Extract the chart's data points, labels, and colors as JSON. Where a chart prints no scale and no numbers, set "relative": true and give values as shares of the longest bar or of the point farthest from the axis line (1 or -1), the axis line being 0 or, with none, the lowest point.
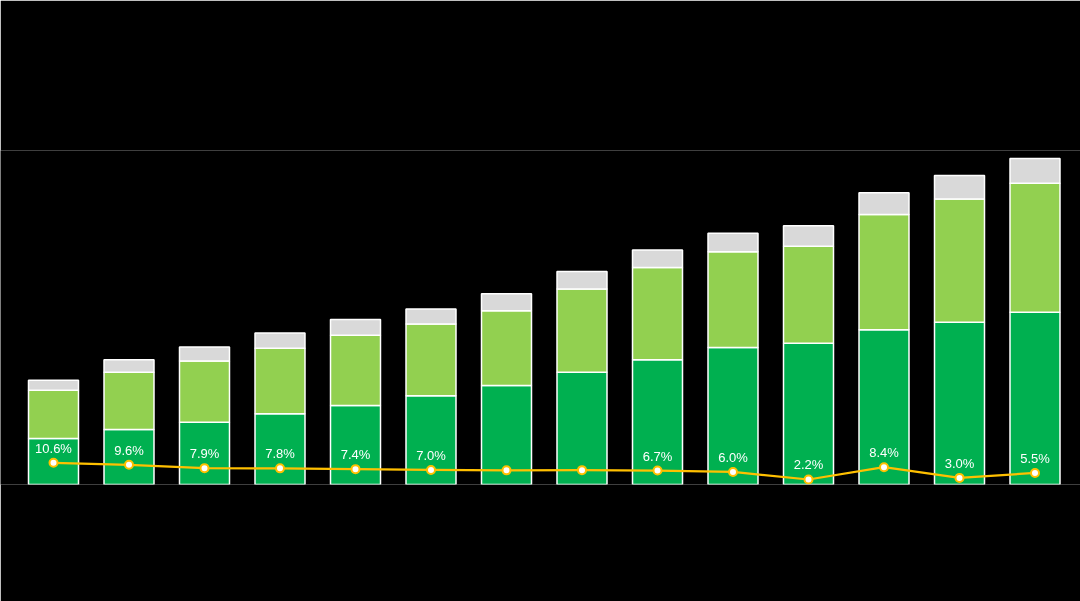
{
  "chart_data": [
    {
      "type": "bar",
      "stacked": true,
      "relative": true,
      "categories": [
        null,
        null,
        null,
        null,
        null,
        null,
        null,
        null,
        null,
        null,
        null,
        null,
        null,
        null
      ],
      "series": [
        {
          "color": "#00b050",
          "values": [
            0.141,
            0.169,
            0.191,
            0.217,
            0.242,
            0.272,
            0.304,
            0.344,
            0.383,
            0.42,
            0.433,
            0.475,
            0.498,
            0.528
          ]
        },
        {
          "color": "#92d050",
          "values": [
            0.148,
            0.175,
            0.188,
            0.201,
            0.216,
            0.22,
            0.229,
            0.256,
            0.283,
            0.294,
            0.298,
            0.353,
            0.378,
            0.396
          ]
        },
        {
          "color": "#d9d9d9",
          "values": [
            0.031,
            0.039,
            0.043,
            0.047,
            0.048,
            0.046,
            0.052,
            0.053,
            0.053,
            0.057,
            0.063,
            0.067,
            0.072,
            0.076
          ]
        }
      ]
    },
    {
      "type": "line",
      "marker": "circle",
      "color": "#ffc000",
      "categories": [
        null,
        null,
        null,
        null,
        null,
        null,
        null,
        null,
        null,
        null,
        null,
        null,
        null,
        null
      ],
      "values": [
        10.6,
        9.6,
        7.9,
        7.8,
        7.4,
        7.0,
        6.8,
        6.9,
        6.7,
        6.0,
        2.2,
        8.4,
        3.0,
        5.5
      ],
      "value_labels": [
        "10.6%",
        "9.6%",
        "7.9%",
        "7.8%",
        "7.4%",
        "7.0%",
        null,
        null,
        "6.7%",
        "6.0%",
        "2.2%",
        "8.4%",
        "3.0%",
        "5.5%"
      ]
    }
  ]
}
